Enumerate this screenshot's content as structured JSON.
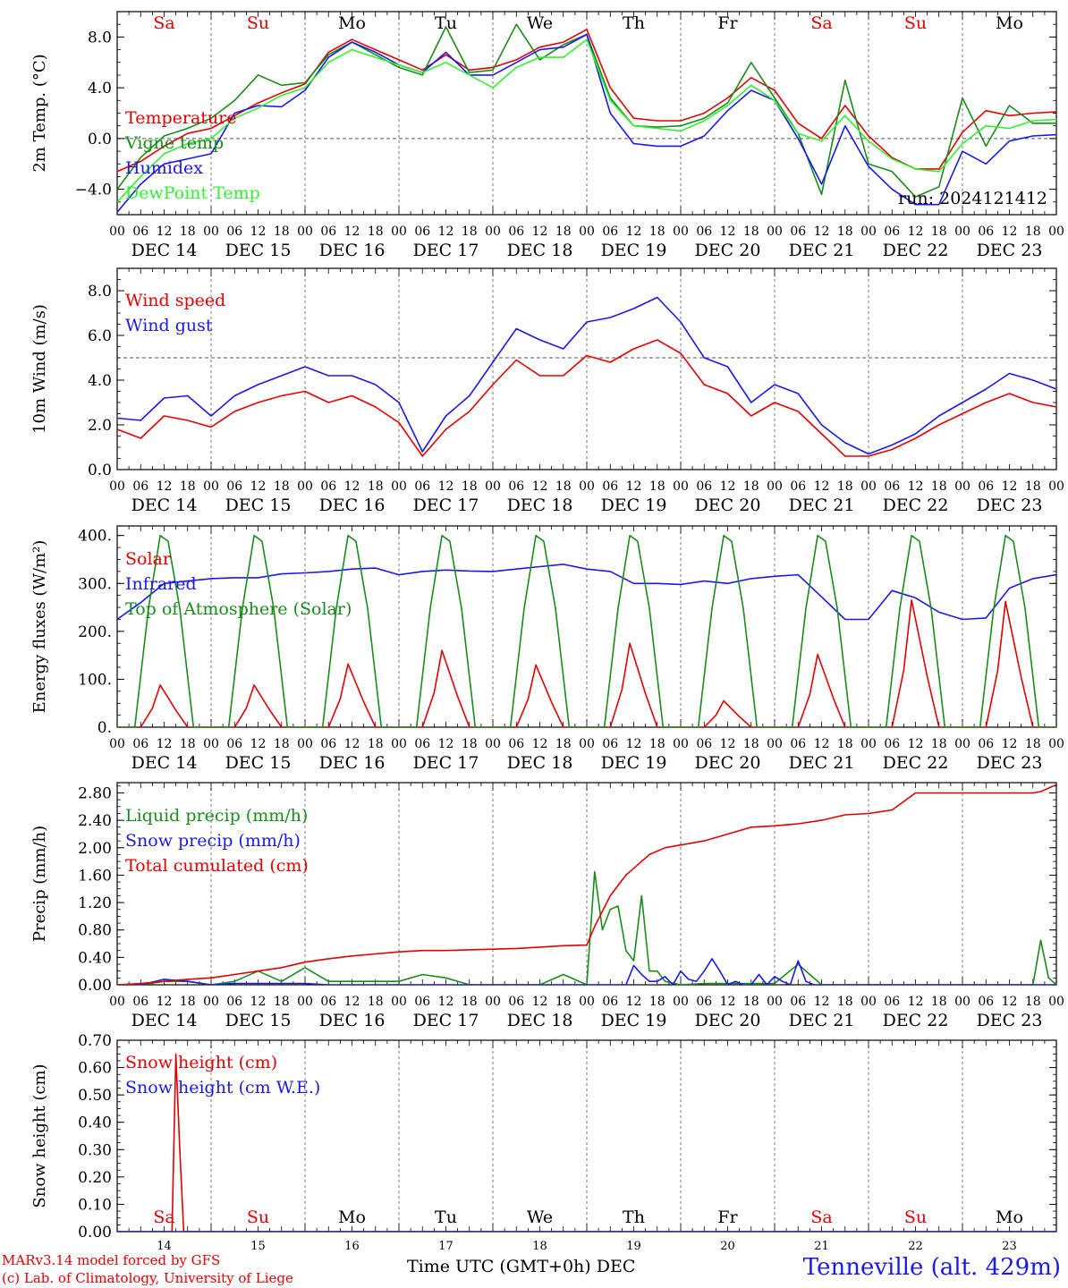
{
  "chart_data": [
    {
      "type": "line",
      "ylabel": "2m Temp. (°C)",
      "ylim": [
        -6,
        10
      ],
      "yticks": [
        -4.0,
        0.0,
        4.0,
        8.0
      ],
      "ytick_labels": [
        "−4.0",
        "0.0",
        "4.0",
        "8.0"
      ],
      "reference_line": 0,
      "weekday_labels": [
        "Sa",
        "Su",
        "Mo",
        "Tu",
        "We",
        "Th",
        "Fr",
        "Sa",
        "Su",
        "Mo"
      ],
      "weekday_colors": [
        "#e00000",
        "#e00000",
        "#000000",
        "#000000",
        "#000000",
        "#000000",
        "#000000",
        "#e00000",
        "#e00000",
        "#000000"
      ],
      "annotation": "run: 2024121412",
      "x_hours": [
        0,
        6,
        12,
        18,
        24,
        30,
        36,
        42,
        48,
        54,
        60,
        66,
        72,
        78,
        84,
        90,
        96,
        102,
        108,
        114,
        120,
        126,
        132,
        138,
        144,
        150,
        156,
        162,
        168,
        174,
        180,
        186,
        192,
        198,
        204,
        210,
        216,
        222,
        228,
        234,
        240
      ],
      "series": [
        {
          "name": "Temperature",
          "color": "#e00000",
          "values": [
            -2.6,
            -1.8,
            -0.6,
            0.4,
            0.8,
            1.8,
            2.8,
            3.6,
            4.3,
            6.8,
            7.8,
            7.0,
            6.2,
            5.4,
            6.6,
            5.4,
            5.6,
            6.2,
            7.2,
            7.6,
            8.6,
            4.0,
            1.6,
            1.4,
            1.4,
            2.0,
            3.2,
            4.8,
            3.8,
            1.2,
            0.0,
            2.6,
            0.2,
            -1.5,
            -2.4,
            -2.4,
            0.5,
            2.2,
            1.8,
            2.0,
            2.1
          ]
        },
        {
          "name": "Vigne temp",
          "color": "#1a8c1a",
          "values": [
            -4.0,
            -1.5,
            0.2,
            0.8,
            1.6,
            3.0,
            5.0,
            4.2,
            4.4,
            6.6,
            7.6,
            6.6,
            5.6,
            5.0,
            8.8,
            5.2,
            5.4,
            9.0,
            6.2,
            7.4,
            8.2,
            3.2,
            1.0,
            0.9,
            1.0,
            1.6,
            2.8,
            6.0,
            3.2,
            0.4,
            -4.4,
            4.6,
            -2.0,
            -2.6,
            -4.6,
            -3.8,
            3.2,
            -0.6,
            2.6,
            1.2,
            1.2
          ]
        },
        {
          "name": "Humidex",
          "color": "#1a1aee",
          "values": [
            -5.8,
            -3.6,
            -2.0,
            -1.6,
            -1.2,
            2.0,
            2.6,
            2.5,
            3.8,
            6.4,
            7.6,
            6.8,
            5.8,
            5.2,
            6.8,
            5.0,
            5.0,
            6.0,
            7.0,
            7.2,
            8.2,
            2.0,
            -0.4,
            -0.6,
            -0.6,
            0.2,
            2.2,
            3.8,
            3.0,
            0.0,
            -3.6,
            1.0,
            -2.2,
            -4.0,
            -5.2,
            -5.2,
            -1.0,
            -2.0,
            -0.2,
            0.2,
            0.3
          ]
        },
        {
          "name": "DewPoint Temp",
          "color": "#33ee33",
          "values": [
            -5.0,
            -3.0,
            -1.2,
            -0.4,
            0.0,
            1.6,
            2.4,
            3.4,
            4.0,
            6.0,
            7.0,
            6.4,
            5.8,
            5.2,
            6.0,
            5.0,
            4.0,
            5.6,
            6.4,
            6.4,
            7.8,
            3.0,
            1.0,
            0.8,
            0.6,
            1.4,
            2.6,
            4.2,
            3.0,
            0.4,
            -0.2,
            1.8,
            -0.2,
            -1.6,
            -2.4,
            -2.6,
            -0.4,
            1.0,
            0.8,
            1.4,
            1.5
          ]
        }
      ]
    },
    {
      "type": "line",
      "ylabel": "10m Wind (m/s)",
      "ylim": [
        0,
        9
      ],
      "yticks": [
        0.0,
        2.0,
        4.0,
        6.0,
        8.0
      ],
      "ytick_labels": [
        "0.0",
        "2.0",
        "4.0",
        "6.0",
        "8.0"
      ],
      "reference_line": 5,
      "x_hours": [
        0,
        6,
        12,
        18,
        24,
        30,
        36,
        42,
        48,
        54,
        60,
        66,
        72,
        78,
        84,
        90,
        96,
        102,
        108,
        114,
        120,
        126,
        132,
        138,
        144,
        150,
        156,
        162,
        168,
        174,
        180,
        186,
        192,
        198,
        204,
        210,
        216,
        222,
        228,
        234,
        240
      ],
      "series": [
        {
          "name": "Wind speed",
          "color": "#e00000",
          "values": [
            1.8,
            1.4,
            2.4,
            2.2,
            1.9,
            2.6,
            3.0,
            3.3,
            3.5,
            3.0,
            3.3,
            2.8,
            2.1,
            0.6,
            1.8,
            2.6,
            3.8,
            4.9,
            4.2,
            4.2,
            5.1,
            4.8,
            5.4,
            5.8,
            5.2,
            3.8,
            3.4,
            2.4,
            3.0,
            2.6,
            1.6,
            0.6,
            0.6,
            0.9,
            1.4,
            2.0,
            2.5,
            3.0,
            3.4,
            3.0,
            2.8
          ]
        },
        {
          "name": "Wind gust",
          "color": "#1a1aee",
          "values": [
            2.3,
            2.2,
            3.2,
            3.3,
            2.4,
            3.3,
            3.8,
            4.2,
            4.6,
            4.2,
            4.2,
            3.8,
            3.0,
            0.8,
            2.4,
            3.3,
            4.8,
            6.3,
            5.8,
            5.4,
            6.6,
            6.8,
            7.2,
            7.7,
            6.6,
            5.0,
            4.6,
            3.0,
            3.8,
            3.4,
            2.0,
            1.2,
            0.7,
            1.1,
            1.6,
            2.4,
            3.0,
            3.6,
            4.3,
            4.0,
            3.6
          ]
        }
      ]
    },
    {
      "type": "line",
      "ylabel": "Energy fluxes (W/m²)",
      "ylim": [
        0,
        420
      ],
      "yticks": [
        0,
        100,
        200,
        300,
        400
      ],
      "ytick_labels": [
        "0.",
        "100.",
        "200.",
        "300.",
        "400."
      ],
      "series": [
        {
          "name": "Solar",
          "color": "#e00000",
          "peaks": [
            {
              "day": 0,
              "value": 88
            },
            {
              "day": 1,
              "value": 88
            },
            {
              "day": 2,
              "value": 132
            },
            {
              "day": 3,
              "value": 160
            },
            {
              "day": 4,
              "value": 130
            },
            {
              "day": 5,
              "value": 175
            },
            {
              "day": 6,
              "value": 55
            },
            {
              "day": 7,
              "value": 152
            },
            {
              "day": 8,
              "value": 265
            },
            {
              "day": 9,
              "value": 262
            }
          ]
        },
        {
          "name": "Infrared",
          "color": "#1a1aee",
          "x_hours": [
            0,
            6,
            12,
            18,
            24,
            30,
            36,
            42,
            48,
            54,
            60,
            66,
            72,
            78,
            84,
            90,
            96,
            102,
            108,
            114,
            120,
            126,
            132,
            138,
            144,
            150,
            156,
            162,
            168,
            174,
            180,
            186,
            192,
            198,
            204,
            210,
            216,
            222,
            228,
            234,
            240
          ],
          "values": [
            225,
            260,
            300,
            305,
            310,
            312,
            312,
            320,
            322,
            325,
            330,
            332,
            318,
            325,
            328,
            326,
            325,
            330,
            335,
            340,
            330,
            325,
            300,
            300,
            298,
            305,
            300,
            310,
            315,
            318,
            272,
            225,
            225,
            285,
            270,
            240,
            225,
            228,
            290,
            310,
            318
          ]
        },
        {
          "name": "Top of Atmosphere (Solar)",
          "color": "#1a8c1a",
          "peak": 400
        }
      ]
    },
    {
      "type": "line",
      "ylabel": "Precip (mm/h)",
      "ylim": [
        0,
        2.95
      ],
      "yticks": [
        0.0,
        0.4,
        0.8,
        1.2,
        1.6,
        2.0,
        2.4,
        2.8
      ],
      "ytick_labels": [
        "0.00",
        "0.40",
        "0.80",
        "1.20",
        "1.60",
        "2.00",
        "2.40",
        "2.80"
      ],
      "series": [
        {
          "name": "Liquid precip (mm/h)",
          "color": "#1a8c1a",
          "x_hours": [
            0,
            6,
            12,
            18,
            24,
            30,
            36,
            42,
            48,
            54,
            60,
            66,
            72,
            78,
            84,
            90,
            96,
            102,
            108,
            114,
            120,
            122,
            124,
            126,
            128,
            130,
            132,
            134,
            136,
            138,
            140,
            144,
            150,
            156,
            162,
            168,
            174,
            180,
            186,
            192,
            198,
            204,
            210,
            216,
            222,
            228,
            234,
            236,
            238,
            240
          ],
          "values": [
            0,
            0,
            0.05,
            0.05,
            0,
            0.05,
            0.2,
            0.05,
            0.25,
            0.05,
            0.05,
            0.05,
            0.05,
            0.15,
            0.1,
            0,
            0,
            0,
            0,
            0.15,
            0,
            1.65,
            0.8,
            1.1,
            1.15,
            0.5,
            0.35,
            1.3,
            0.2,
            0.2,
            0.05,
            0,
            0.02,
            0.02,
            0.02,
            0.02,
            0.3,
            0,
            0,
            0,
            0,
            0,
            0,
            0,
            0,
            0,
            0,
            0.65,
            0.1,
            0
          ]
        },
        {
          "name": "Snow precip (mm/h)",
          "color": "#1a1aee",
          "x_hours": [
            0,
            6,
            12,
            18,
            24,
            30,
            36,
            42,
            48,
            54,
            60,
            66,
            72,
            78,
            84,
            90,
            96,
            102,
            108,
            114,
            120,
            126,
            130,
            132,
            134,
            136,
            138,
            140,
            142,
            144,
            146,
            148,
            150,
            152,
            154,
            156,
            158,
            160,
            162,
            164,
            166,
            168,
            170,
            172,
            174,
            176,
            178,
            180,
            186,
            192,
            198,
            204,
            210,
            216,
            222,
            228,
            234,
            240
          ],
          "values": [
            0,
            0,
            0.08,
            0.05,
            0,
            0.02,
            0.02,
            0.02,
            0.02,
            0,
            0,
            0,
            0,
            0,
            0,
            0,
            0,
            0,
            0,
            0,
            0,
            0,
            0,
            0.28,
            0.15,
            0.05,
            0.05,
            0.12,
            0,
            0.2,
            0.08,
            0.05,
            0.2,
            0.38,
            0.2,
            0,
            0.05,
            0,
            0,
            0.15,
            0,
            0.12,
            0.05,
            0,
            0.35,
            0.05,
            0,
            0,
            0,
            0,
            0,
            0,
            0,
            0,
            0,
            0,
            0,
            0
          ]
        },
        {
          "name": "Total cumulated (cm)",
          "color": "#e00000",
          "x_hours": [
            0,
            6,
            12,
            18,
            24,
            30,
            36,
            42,
            48,
            54,
            60,
            66,
            72,
            78,
            84,
            90,
            96,
            102,
            108,
            114,
            120,
            122,
            126,
            130,
            132,
            136,
            140,
            144,
            150,
            156,
            162,
            168,
            174,
            180,
            186,
            192,
            198,
            204,
            210,
            216,
            222,
            228,
            234,
            236,
            240
          ],
          "values": [
            0,
            0.02,
            0.05,
            0.08,
            0.1,
            0.15,
            0.2,
            0.25,
            0.33,
            0.38,
            0.42,
            0.45,
            0.48,
            0.5,
            0.5,
            0.51,
            0.52,
            0.53,
            0.55,
            0.57,
            0.58,
            0.85,
            1.3,
            1.6,
            1.7,
            1.9,
            2.0,
            2.04,
            2.1,
            2.2,
            2.3,
            2.32,
            2.35,
            2.4,
            2.48,
            2.5,
            2.55,
            2.8,
            2.8,
            2.8,
            2.8,
            2.8,
            2.8,
            2.82,
            2.92
          ]
        }
      ]
    },
    {
      "type": "line",
      "ylabel": "Snow height (cm)",
      "ylim": [
        0,
        0.7
      ],
      "yticks": [
        0.0,
        0.1,
        0.2,
        0.3,
        0.4,
        0.5,
        0.6,
        0.7
      ],
      "ytick_labels": [
        "0.00",
        "0.10",
        "0.20",
        "0.30",
        "0.40",
        "0.50",
        "0.60",
        "0.70"
      ],
      "weekday_labels": [
        "Sa",
        "Su",
        "Mo",
        "Tu",
        "We",
        "Th",
        "Fr",
        "Sa",
        "Su",
        "Mo"
      ],
      "weekday_colors": [
        "#e00000",
        "#e00000",
        "#000000",
        "#000000",
        "#000000",
        "#000000",
        "#000000",
        "#e00000",
        "#e00000",
        "#000000"
      ],
      "day_numbers": [
        "14",
        "15",
        "16",
        "17",
        "18",
        "19",
        "20",
        "21",
        "22",
        "23"
      ],
      "series": [
        {
          "name": "Snow height (cm)",
          "color": "#e00000",
          "x_hours": [
            0,
            14,
            15,
            16,
            17,
            240
          ],
          "values": [
            0,
            0,
            0.65,
            0.3,
            0,
            0
          ]
        },
        {
          "name": "Snow height (cm W.E.)",
          "color": "#1a1aee",
          "x_hours": [
            0,
            240
          ],
          "values": [
            0,
            0
          ]
        }
      ]
    }
  ],
  "x_axis": {
    "hour_labels": [
      "00",
      "06",
      "12",
      "18"
    ],
    "final_hour_label": "00",
    "date_labels": [
      "DEC 14",
      "DEC 15",
      "DEC 16",
      "DEC 17",
      "DEC 18",
      "DEC 19",
      "DEC 20",
      "DEC 21",
      "DEC 22",
      "DEC 23"
    ],
    "colors": {
      "axis": "#000000",
      "grid": "#777777",
      "zero_line": "#555555"
    }
  },
  "footer": {
    "model": "MARv3.14 model forced by GFS",
    "lab": "(c) Lab. of Climatology, University of Liege",
    "axis_title": "Time UTC (GMT+0h)",
    "month": "DEC",
    "station": "Tenneville (alt. 429m)"
  }
}
